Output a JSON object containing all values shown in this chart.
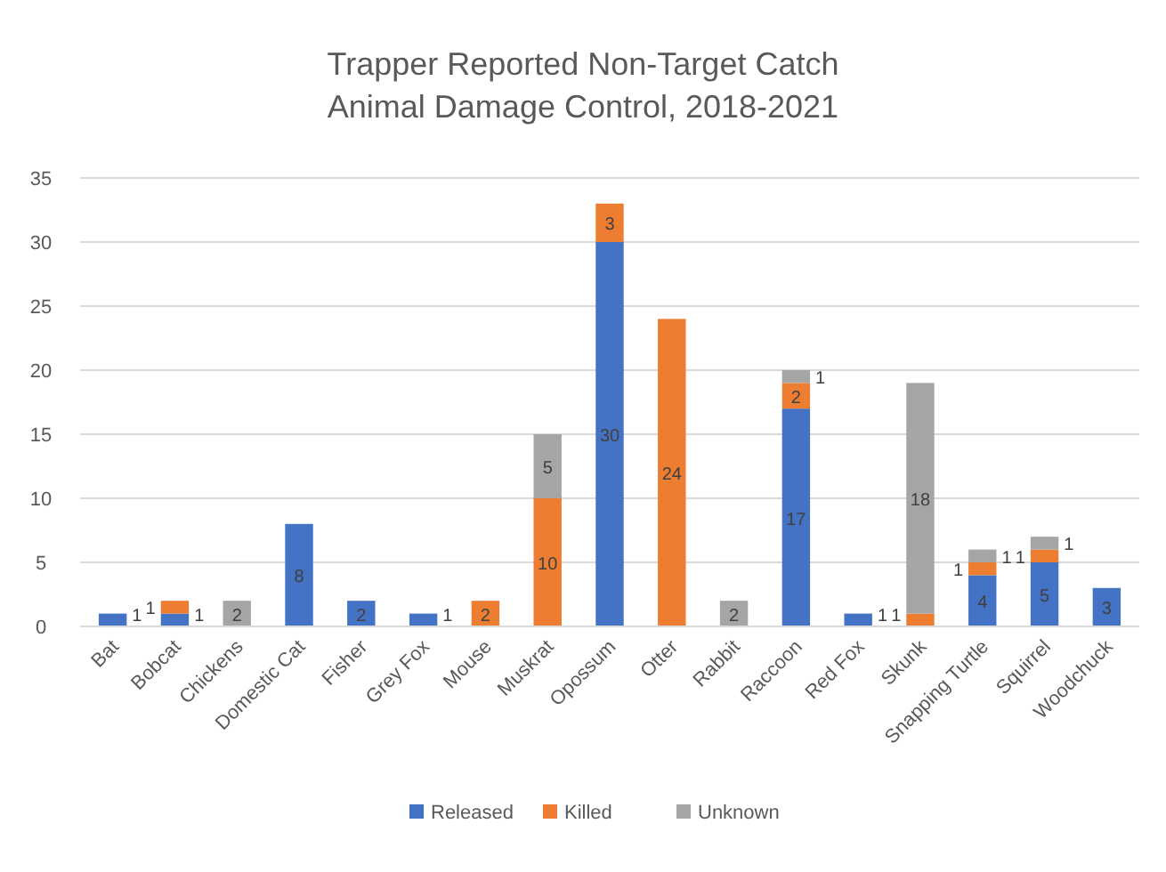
{
  "chart_data": {
    "type": "bar",
    "title": "Trapper Reported Non-Target Catch\nAnimal Damage Control, 2018-2021",
    "stacked": true,
    "categories": [
      "Bat",
      "Bobcat",
      "Chickens",
      "Domestic Cat",
      "Fisher",
      "Grey Fox",
      "Mouse",
      "Muskrat",
      "Opossum",
      "Otter",
      "Rabbit",
      "Raccoon",
      "Red Fox",
      "Skunk",
      "Snapping Turtle",
      "Squirrel",
      "Woodchuck"
    ],
    "series": [
      {
        "name": "Released",
        "color": "#4472c4",
        "values": [
          1,
          1,
          null,
          8,
          2,
          1,
          null,
          null,
          30,
          null,
          null,
          17,
          1,
          null,
          4,
          5,
          3
        ]
      },
      {
        "name": "Killed",
        "color": "#ed7d31",
        "values": [
          null,
          1,
          null,
          null,
          null,
          null,
          2,
          10,
          3,
          24,
          null,
          2,
          null,
          1,
          1,
          1,
          null
        ]
      },
      {
        "name": "Unknown",
        "color": "#a5a5a5",
        "values": [
          null,
          null,
          2,
          null,
          null,
          null,
          null,
          5,
          null,
          null,
          2,
          1,
          null,
          18,
          1,
          1,
          null
        ]
      }
    ],
    "ylim": [
      0,
      35
    ],
    "yticks": [
      0,
      5,
      10,
      15,
      20,
      25,
      30,
      35
    ],
    "grid": "y",
    "legend": "bottom",
    "data_labels": true
  }
}
